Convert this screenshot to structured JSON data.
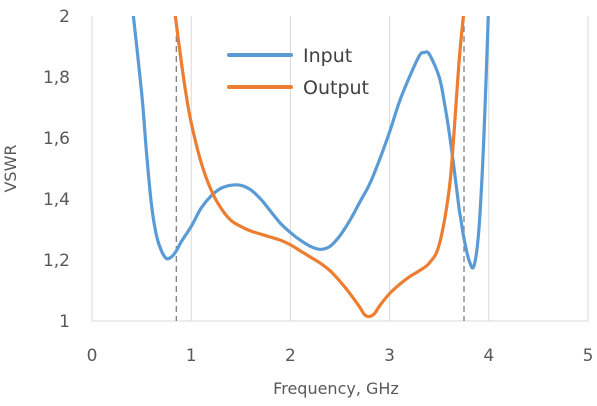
{
  "chart_data": {
    "type": "line",
    "title": "",
    "xlabel": "Frequency, GHz",
    "ylabel": "VSWR",
    "xlim": [
      0,
      5
    ],
    "ylim": [
      1,
      2
    ],
    "x_ticks": [
      0,
      1,
      2,
      3,
      4,
      5
    ],
    "x_tick_labels": [
      "0",
      "1",
      "2",
      "3",
      "4",
      "5"
    ],
    "y_ticks": [
      1,
      1.2,
      1.4,
      1.6,
      1.8,
      2
    ],
    "y_tick_labels": [
      "1",
      "1,2",
      "1,4",
      "1,6",
      "1,8",
      "2"
    ],
    "grid": "vertical",
    "legend": "top-center",
    "reference_lines_x": [
      0.85,
      3.75
    ],
    "series": [
      {
        "name": "Input",
        "color": "#5b9bd5",
        "x": [
          0.4,
          0.5,
          0.55,
          0.6,
          0.65,
          0.7,
          0.75,
          0.8,
          0.85,
          0.9,
          1.0,
          1.1,
          1.2,
          1.3,
          1.4,
          1.5,
          1.6,
          1.7,
          1.8,
          1.9,
          2.0,
          2.1,
          2.2,
          2.3,
          2.4,
          2.5,
          2.6,
          2.7,
          2.8,
          2.9,
          3.0,
          3.1,
          3.2,
          3.3,
          3.35,
          3.4,
          3.5,
          3.55,
          3.6,
          3.65,
          3.7,
          3.72,
          3.75,
          3.8,
          3.85,
          3.9,
          3.95,
          4.0
        ],
        "y": [
          2.05,
          1.75,
          1.55,
          1.38,
          1.28,
          1.23,
          1.205,
          1.21,
          1.23,
          1.26,
          1.31,
          1.37,
          1.41,
          1.435,
          1.445,
          1.445,
          1.43,
          1.4,
          1.36,
          1.32,
          1.29,
          1.265,
          1.245,
          1.235,
          1.245,
          1.28,
          1.33,
          1.39,
          1.45,
          1.53,
          1.62,
          1.72,
          1.8,
          1.87,
          1.88,
          1.875,
          1.8,
          1.72,
          1.62,
          1.5,
          1.37,
          1.33,
          1.27,
          1.2,
          1.18,
          1.3,
          1.6,
          2.05
        ]
      },
      {
        "name": "Output",
        "color": "#ed7d31",
        "x": [
          0.84,
          0.9,
          0.95,
          1.0,
          1.1,
          1.2,
          1.3,
          1.4,
          1.5,
          1.6,
          1.7,
          1.8,
          1.9,
          2.0,
          2.1,
          2.2,
          2.3,
          2.4,
          2.5,
          2.6,
          2.7,
          2.75,
          2.8,
          2.85,
          2.9,
          3.0,
          3.1,
          3.2,
          3.3,
          3.4,
          3.5,
          3.6,
          3.65,
          3.7,
          3.75
        ],
        "y": [
          2.0,
          1.85,
          1.74,
          1.65,
          1.52,
          1.43,
          1.37,
          1.33,
          1.31,
          1.295,
          1.285,
          1.275,
          1.265,
          1.25,
          1.23,
          1.21,
          1.19,
          1.165,
          1.13,
          1.09,
          1.045,
          1.02,
          1.015,
          1.025,
          1.05,
          1.09,
          1.12,
          1.145,
          1.165,
          1.19,
          1.25,
          1.43,
          1.62,
          1.85,
          2.02
        ]
      }
    ]
  }
}
